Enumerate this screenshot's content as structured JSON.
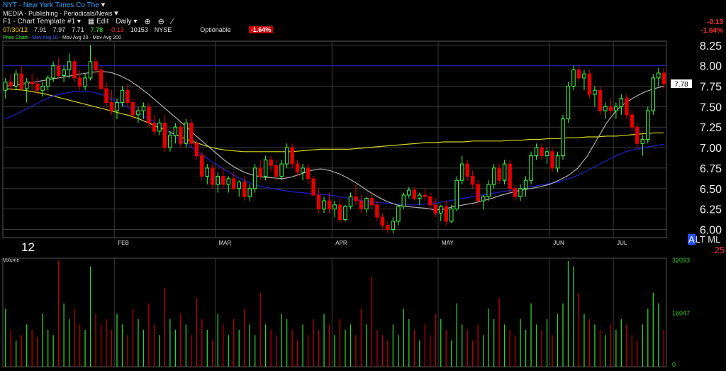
{
  "header": {
    "symbol": "NYT",
    "company": "New York Times Co The",
    "sector": "MEDIA - Publishing - Periodicals/News",
    "template": "F1 - Chart Template #1",
    "edit_label": "Edit",
    "interval": "Daily"
  },
  "quote": {
    "date": "07/30/12",
    "open": "7.91",
    "high": "7.97",
    "low": "7.71",
    "last": "7.78",
    "change": "-0.13",
    "volume": "10153",
    "exchange": "NYSE",
    "optionable": "Optionable",
    "pct_change": "-1.64%"
  },
  "studies": {
    "price": "Price Chart",
    "ma1": "Mov Avg 10",
    "ma2": "Mov Avg 20",
    "ma3": "Mov Avg 200"
  },
  "right_change": {
    "change": "-0.13",
    "pct": "-1.64%"
  },
  "overlay": {
    "alt": "A",
    "tml": "LT ML",
    "pct": ".25"
  },
  "year_label": "12",
  "volume_panel": {
    "label": "Volume",
    "ticks": [
      "32093",
      "16047",
      "0"
    ]
  },
  "colors": {
    "up": "#3cff3c",
    "down": "#e00000",
    "ma_short": "#b0b0b0",
    "ma_mid": "#2020d0",
    "ma_long": "#d8d820",
    "resistance": "#2020d0"
  },
  "chart_data": {
    "type": "candlestick",
    "ylim": [
      5.9,
      8.3
    ],
    "y_ticks": [
      "8.25",
      "8.00",
      "7.75",
      "7.50",
      "7.25",
      "7.00",
      "6.75",
      "6.50",
      "6.25",
      "6.00"
    ],
    "x_month_labels": [
      "FEB",
      "MAR",
      "APR",
      "MAY",
      "JUN",
      "JUL"
    ],
    "last_price_label": "7.78",
    "resistance_level": 8.0,
    "volume_max": 32093,
    "candles": [
      [
        7.7,
        7.85,
        7.6,
        7.8
      ],
      [
        7.8,
        7.9,
        7.7,
        7.75
      ],
      [
        7.75,
        7.95,
        7.7,
        7.9
      ],
      [
        7.9,
        8.0,
        7.7,
        7.72
      ],
      [
        7.72,
        7.85,
        7.55,
        7.8
      ],
      [
        7.8,
        7.9,
        7.7,
        7.78
      ],
      [
        7.78,
        7.85,
        7.65,
        7.7
      ],
      [
        7.7,
        7.8,
        7.62,
        7.75
      ],
      [
        7.75,
        7.88,
        7.7,
        7.85
      ],
      [
        7.85,
        8.05,
        7.8,
        8.0
      ],
      [
        8.0,
        8.1,
        7.85,
        7.88
      ],
      [
        7.88,
        8.0,
        7.8,
        7.95
      ],
      [
        7.95,
        8.15,
        7.85,
        8.05
      ],
      [
        8.05,
        8.1,
        7.8,
        7.85
      ],
      [
        7.85,
        7.95,
        7.7,
        7.75
      ],
      [
        7.75,
        7.9,
        7.7,
        7.85
      ],
      [
        7.85,
        8.25,
        7.82,
        8.05
      ],
      [
        8.05,
        8.1,
        7.9,
        7.95
      ],
      [
        7.95,
        8.0,
        7.7,
        7.72
      ],
      [
        7.72,
        7.8,
        7.5,
        7.55
      ],
      [
        7.55,
        7.7,
        7.4,
        7.45
      ],
      [
        7.45,
        7.6,
        7.35,
        7.55
      ],
      [
        7.55,
        7.75,
        7.5,
        7.7
      ],
      [
        7.7,
        7.78,
        7.5,
        7.55
      ],
      [
        7.55,
        7.6,
        7.35,
        7.4
      ],
      [
        7.4,
        7.5,
        7.3,
        7.45
      ],
      [
        7.45,
        7.55,
        7.35,
        7.5
      ],
      [
        7.5,
        7.55,
        7.25,
        7.3
      ],
      [
        7.3,
        7.4,
        7.15,
        7.2
      ],
      [
        7.2,
        7.35,
        7.15,
        7.3
      ],
      [
        7.3,
        7.4,
        6.95,
        7.0
      ],
      [
        7.0,
        7.2,
        6.95,
        7.15
      ],
      [
        7.15,
        7.3,
        7.05,
        7.25
      ],
      [
        7.25,
        7.3,
        7.0,
        7.05
      ],
      [
        7.05,
        7.35,
        7.0,
        7.3
      ],
      [
        7.3,
        7.35,
        7.0,
        7.05
      ],
      [
        7.05,
        7.1,
        6.85,
        6.9
      ],
      [
        6.9,
        6.95,
        6.6,
        6.65
      ],
      [
        6.65,
        6.8,
        6.55,
        6.75
      ],
      [
        6.75,
        6.8,
        6.5,
        6.55
      ],
      [
        6.55,
        6.7,
        6.45,
        6.65
      ],
      [
        6.65,
        6.75,
        6.5,
        6.55
      ],
      [
        6.55,
        6.65,
        6.45,
        6.62
      ],
      [
        6.62,
        6.7,
        6.48,
        6.5
      ],
      [
        6.5,
        6.6,
        6.4,
        6.58
      ],
      [
        6.58,
        6.65,
        6.35,
        6.4
      ],
      [
        6.4,
        6.55,
        6.35,
        6.5
      ],
      [
        6.5,
        6.8,
        6.45,
        6.75
      ],
      [
        6.75,
        6.85,
        6.6,
        6.65
      ],
      [
        6.65,
        6.9,
        6.6,
        6.85
      ],
      [
        6.85,
        6.9,
        6.7,
        6.78
      ],
      [
        6.78,
        6.85,
        6.6,
        6.65
      ],
      [
        6.65,
        6.85,
        6.6,
        6.8
      ],
      [
        6.8,
        7.05,
        6.75,
        7.0
      ],
      [
        7.0,
        7.05,
        6.75,
        6.8
      ],
      [
        6.8,
        6.85,
        6.65,
        6.7
      ],
      [
        6.7,
        6.8,
        6.6,
        6.75
      ],
      [
        6.75,
        6.8,
        6.55,
        6.62
      ],
      [
        6.62,
        6.65,
        6.4,
        6.42
      ],
      [
        6.42,
        6.5,
        6.2,
        6.25
      ],
      [
        6.25,
        6.4,
        6.2,
        6.35
      ],
      [
        6.35,
        6.45,
        6.2,
        6.25
      ],
      [
        6.25,
        6.35,
        6.15,
        6.3
      ],
      [
        6.3,
        6.4,
        6.08,
        6.12
      ],
      [
        6.12,
        6.3,
        6.1,
        6.28
      ],
      [
        6.28,
        6.45,
        6.25,
        6.4
      ],
      [
        6.4,
        6.55,
        6.3,
        6.35
      ],
      [
        6.35,
        6.42,
        6.2,
        6.25
      ],
      [
        6.25,
        6.4,
        6.2,
        6.38
      ],
      [
        6.38,
        6.45,
        6.25,
        6.3
      ],
      [
        6.3,
        6.35,
        6.1,
        6.15
      ],
      [
        6.15,
        6.2,
        6.0,
        6.05
      ],
      [
        6.05,
        6.1,
        5.95,
        6.0
      ],
      [
        6.0,
        6.15,
        5.95,
        6.1
      ],
      [
        6.1,
        6.3,
        6.05,
        6.28
      ],
      [
        6.28,
        6.45,
        6.25,
        6.42
      ],
      [
        6.42,
        6.52,
        6.38,
        6.48
      ],
      [
        6.48,
        6.52,
        6.35,
        6.38
      ],
      [
        6.38,
        6.45,
        6.3,
        6.42
      ],
      [
        6.42,
        6.5,
        6.35,
        6.4
      ],
      [
        6.4,
        6.45,
        6.25,
        6.3
      ],
      [
        6.3,
        6.38,
        6.15,
        6.2
      ],
      [
        6.2,
        6.3,
        6.1,
        6.28
      ],
      [
        6.28,
        6.35,
        6.05,
        6.1
      ],
      [
        6.1,
        6.3,
        6.08,
        6.25
      ],
      [
        6.25,
        6.65,
        6.22,
        6.6
      ],
      [
        6.6,
        6.9,
        6.55,
        6.8
      ],
      [
        6.8,
        6.85,
        6.6,
        6.65
      ],
      [
        6.65,
        6.72,
        6.5,
        6.55
      ],
      [
        6.55,
        6.6,
        6.3,
        6.35
      ],
      [
        6.35,
        6.42,
        6.25,
        6.4
      ],
      [
        6.4,
        6.6,
        6.35,
        6.55
      ],
      [
        6.55,
        6.8,
        6.5,
        6.75
      ],
      [
        6.75,
        6.8,
        6.55,
        6.6
      ],
      [
        6.6,
        6.85,
        6.55,
        6.8
      ],
      [
        6.8,
        6.85,
        6.45,
        6.5
      ],
      [
        6.5,
        6.55,
        6.35,
        6.4
      ],
      [
        6.4,
        6.55,
        6.35,
        6.5
      ],
      [
        6.5,
        6.65,
        6.4,
        6.6
      ],
      [
        6.6,
        6.95,
        6.55,
        6.9
      ],
      [
        6.9,
        7.05,
        6.85,
        7.0
      ],
      [
        7.0,
        7.05,
        6.85,
        6.9
      ],
      [
        6.9,
        7.0,
        6.8,
        6.95
      ],
      [
        6.95,
        7.0,
        6.7,
        6.75
      ],
      [
        6.75,
        6.95,
        6.7,
        6.9
      ],
      [
        6.9,
        7.4,
        6.85,
        7.35
      ],
      [
        7.35,
        7.8,
        7.3,
        7.75
      ],
      [
        7.75,
        8.0,
        7.7,
        7.95
      ],
      [
        7.95,
        8.0,
        7.8,
        7.85
      ],
      [
        7.85,
        7.95,
        7.7,
        7.9
      ],
      [
        7.9,
        7.95,
        7.6,
        7.65
      ],
      [
        7.65,
        7.75,
        7.5,
        7.7
      ],
      [
        7.7,
        7.75,
        7.4,
        7.45
      ],
      [
        7.45,
        7.55,
        7.35,
        7.5
      ],
      [
        7.5,
        7.6,
        7.4,
        7.45
      ],
      [
        7.45,
        7.55,
        7.35,
        7.5
      ],
      [
        7.5,
        7.65,
        7.4,
        7.6
      ],
      [
        7.6,
        7.65,
        7.35,
        7.4
      ],
      [
        7.4,
        7.45,
        7.2,
        7.25
      ],
      [
        7.25,
        7.3,
        7.0,
        7.05
      ],
      [
        7.05,
        7.15,
        6.9,
        7.1
      ],
      [
        7.1,
        7.5,
        7.05,
        7.45
      ],
      [
        7.45,
        7.9,
        7.4,
        7.85
      ],
      [
        7.85,
        7.97,
        7.75,
        7.91
      ],
      [
        7.91,
        7.97,
        7.71,
        7.78
      ]
    ],
    "ma_short": [
      7.75,
      7.76,
      7.78,
      7.8,
      7.82,
      7.84,
      7.86,
      7.88,
      7.9,
      7.92,
      7.93,
      7.92,
      7.88,
      7.82,
      7.74,
      7.65,
      7.55,
      7.45,
      7.35,
      7.25,
      7.14,
      7.04,
      6.94,
      6.84,
      6.76,
      6.7,
      6.66,
      6.64,
      6.63,
      6.62,
      6.64,
      6.68,
      6.72,
      6.74,
      6.72,
      6.68,
      6.62,
      6.55,
      6.47,
      6.4,
      6.34,
      6.3,
      6.28,
      6.27,
      6.26,
      6.24,
      6.25,
      6.28,
      6.3,
      6.32,
      6.35,
      6.38,
      6.42,
      6.45,
      6.48,
      6.5,
      6.52,
      6.55,
      6.6,
      6.66,
      6.75,
      6.9,
      7.1,
      7.3,
      7.45,
      7.55,
      7.62,
      7.68,
      7.72,
      7.75
    ],
    "ma_mid": [
      7.35,
      7.4,
      7.46,
      7.52,
      7.58,
      7.63,
      7.66,
      7.68,
      7.69,
      7.68,
      7.65,
      7.6,
      7.54,
      7.48,
      7.42,
      7.35,
      7.28,
      7.2,
      7.12,
      7.04,
      6.96,
      6.88,
      6.8,
      6.73,
      6.66,
      6.6,
      6.55,
      6.52,
      6.5,
      6.48,
      6.46,
      6.45,
      6.44,
      6.43,
      6.42,
      6.4,
      6.38,
      6.36,
      6.34,
      6.33,
      6.32,
      6.31,
      6.3,
      6.3,
      6.31,
      6.32,
      6.34,
      6.36,
      6.38,
      6.4,
      6.42,
      6.44,
      6.46,
      6.48,
      6.5,
      6.52,
      6.54,
      6.56,
      6.58,
      6.62,
      6.66,
      6.72,
      6.78,
      6.84,
      6.9,
      6.95,
      6.98,
      7.0,
      7.02,
      7.04
    ],
    "ma_long": [
      7.72,
      7.71,
      7.7,
      7.68,
      7.66,
      7.63,
      7.6,
      7.57,
      7.54,
      7.51,
      7.48,
      7.45,
      7.42,
      7.39,
      7.35,
      7.3,
      7.25,
      7.2,
      7.15,
      7.1,
      7.06,
      7.02,
      6.99,
      6.97,
      6.96,
      6.95,
      6.95,
      6.95,
      6.95,
      6.95,
      6.95,
      6.96,
      6.97,
      6.98,
      6.98,
      6.98,
      6.98,
      6.99,
      7.0,
      7.01,
      7.02,
      7.03,
      7.04,
      7.05,
      7.06,
      7.06,
      7.07,
      7.07,
      7.07,
      7.08,
      7.08,
      7.08,
      7.08,
      7.09,
      7.09,
      7.1,
      7.1,
      7.11,
      7.11,
      7.12,
      7.12,
      7.13,
      7.13,
      7.14,
      7.14,
      7.15,
      7.16,
      7.17,
      7.18,
      7.18
    ],
    "volume": [
      0.55,
      0.35,
      0.25,
      0.3,
      0.4,
      0.35,
      0.28,
      0.5,
      0.35,
      0.3,
      1.0,
      0.6,
      0.45,
      0.55,
      0.4,
      0.35,
      0.95,
      0.5,
      0.4,
      0.45,
      0.35,
      0.5,
      0.4,
      0.3,
      0.55,
      0.45,
      0.35,
      0.6,
      0.4,
      0.3,
      0.75,
      0.45,
      0.35,
      0.5,
      0.4,
      0.3,
      0.65,
      0.45,
      0.35,
      0.25,
      0.5,
      0.4,
      0.3,
      0.45,
      0.35,
      0.55,
      0.4,
      0.3,
      0.7,
      0.4,
      0.35,
      0.3,
      0.5,
      0.45,
      0.35,
      0.25,
      0.4,
      0.3,
      0.45,
      0.35,
      0.5,
      0.4,
      0.3,
      0.45,
      0.35,
      0.4,
      0.3,
      0.55,
      0.4,
      0.85,
      0.35,
      0.3,
      0.25,
      0.4,
      0.3,
      0.55,
      0.45,
      0.35,
      0.25,
      0.4,
      0.3,
      0.5,
      0.45,
      0.35,
      0.25,
      0.6,
      0.4,
      0.35,
      0.25,
      0.4,
      0.3,
      0.55,
      0.45,
      0.65,
      0.4,
      0.35,
      0.3,
      0.45,
      0.35,
      0.6,
      0.4,
      0.35,
      0.45,
      0.3,
      0.5,
      0.6,
      1.0,
      0.95,
      0.7,
      0.5,
      0.45,
      0.4,
      0.35,
      0.3,
      0.4,
      0.35,
      0.45,
      0.4,
      0.3,
      0.25,
      0.4,
      0.55,
      0.7,
      0.6,
      0.35
    ]
  }
}
